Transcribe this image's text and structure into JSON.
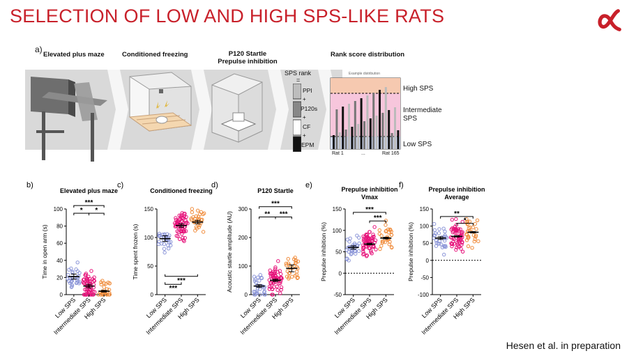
{
  "slide": {
    "title": "SELECTION OF LOW AND HIGH SPS-LIKE RATS",
    "citation": "Hesen et al. in preparation",
    "accent_color": "#c8202a"
  },
  "panel_a": {
    "letter": "a)",
    "steps": [
      "Elevated plus maze",
      "Conditioned freezing",
      "P120 Startle",
      "Prepulse inhibition"
    ],
    "sps_rank": {
      "title": "SPS rank",
      "equals": "=",
      "items": [
        "PPI",
        "+",
        "P120s",
        "+",
        "CF",
        "+",
        "EPM"
      ]
    },
    "rank_chart": {
      "title": "Rank score distribution",
      "example_label": "Example distribution",
      "zones": [
        "High SPS",
        "Intermediate SPS",
        "Low SPS"
      ],
      "x_start": "Rat 1",
      "x_mid": "...",
      "x_end": "Rat 165"
    }
  },
  "chart_data": [
    {
      "id": "b",
      "letter": "b)",
      "type": "scatter",
      "title": "Elevated plus maze",
      "title2": "",
      "ylabel": "Time in open arm (s)",
      "ylim": [
        0,
        100
      ],
      "ticks": [
        0,
        20,
        40,
        60,
        80,
        100
      ],
      "categories": [
        "Low SPS",
        "Intermediate SPS",
        "High SPS"
      ],
      "colors": [
        "#8c96d8",
        "#e6127a",
        "#f08c3c"
      ],
      "means": [
        21,
        10,
        4
      ],
      "sems": [
        3,
        2,
        1
      ],
      "sig": [
        {
          "from": 0,
          "to": 2,
          "y": 104,
          "label": "***"
        },
        {
          "from": 0,
          "to": 1,
          "y": 95,
          "label": "*"
        },
        {
          "from": 1,
          "to": 2,
          "y": 95,
          "label": "*"
        }
      ],
      "zero_line": false
    },
    {
      "id": "c",
      "letter": "c)",
      "type": "scatter",
      "title": "Conditioned freezing",
      "title2": "",
      "ylabel": "Time spent frozen (s)",
      "ylim": [
        0,
        150
      ],
      "ticks": [
        0,
        50,
        100,
        150
      ],
      "categories": [
        "Low SPS",
        "Intermediate SPS",
        "High SPS"
      ],
      "colors": [
        "#8c96d8",
        "#e6127a",
        "#f08c3c"
      ],
      "means": [
        98,
        121,
        127
      ],
      "sems": [
        5,
        3,
        3
      ],
      "sig": [
        {
          "from": 0,
          "to": 2,
          "y": 32,
          "label": "***",
          "below": true
        },
        {
          "from": 0,
          "to": 1,
          "y": 18,
          "label": "***",
          "below": true
        }
      ],
      "zero_line": false
    },
    {
      "id": "d",
      "letter": "d)",
      "type": "scatter",
      "title": "P120 Startle",
      "title2": "",
      "ylabel": "Acoustic startle amplitude (AU)",
      "ylim": [
        0,
        300
      ],
      "ticks": [
        0,
        100,
        200,
        300
      ],
      "categories": [
        "Low SPS",
        "Intermediate SPS",
        "High SPS"
      ],
      "colors": [
        "#8c96d8",
        "#e6127a",
        "#f08c3c"
      ],
      "means": [
        30,
        50,
        92
      ],
      "sems": [
        5,
        4,
        12
      ],
      "sig": [
        {
          "from": 0,
          "to": 2,
          "y": 308,
          "label": "***"
        },
        {
          "from": 0,
          "to": 1,
          "y": 272,
          "label": "**"
        },
        {
          "from": 1,
          "to": 2,
          "y": 272,
          "label": "***"
        }
      ],
      "zero_line": false
    },
    {
      "id": "e",
      "letter": "e)",
      "type": "scatter",
      "title": "Prepulse inhibition",
      "title2": "Vmax",
      "ylabel": "Prepulse inhibition (%)",
      "ylim": [
        -50,
        150
      ],
      "ticks": [
        -50,
        0,
        50,
        100,
        150
      ],
      "categories": [
        "Low SPS",
        "Intermediate SPS",
        "High SPS"
      ],
      "colors": [
        "#8c96d8",
        "#e6127a",
        "#f08c3c"
      ],
      "means": [
        60,
        68,
        82
      ],
      "sems": [
        4,
        2,
        2
      ],
      "sig": [
        {
          "from": 0,
          "to": 2,
          "y": 142,
          "label": "***"
        },
        {
          "from": 1,
          "to": 2,
          "y": 122,
          "label": "***"
        }
      ],
      "zero_line": true
    },
    {
      "id": "f",
      "letter": "f)",
      "type": "scatter",
      "title": "Prepulse inhibition",
      "title2": "Average",
      "ylabel": "Prepulse inhibition (%)",
      "ylim": [
        -100,
        150
      ],
      "ticks": [
        -100,
        -50,
        0,
        50,
        100,
        150
      ],
      "categories": [
        "Low SPS",
        "Intermediate SPS",
        "High SPS"
      ],
      "colors": [
        "#8c96d8",
        "#e6127a",
        "#f08c3c"
      ],
      "means": [
        65,
        70,
        82
      ],
      "sems": [
        4,
        2,
        2
      ],
      "sig": [
        {
          "from": 0,
          "to": 2,
          "y": 128,
          "label": "**"
        },
        {
          "from": 1,
          "to": 2,
          "y": 108,
          "label": "*"
        }
      ],
      "zero_line": true
    }
  ]
}
